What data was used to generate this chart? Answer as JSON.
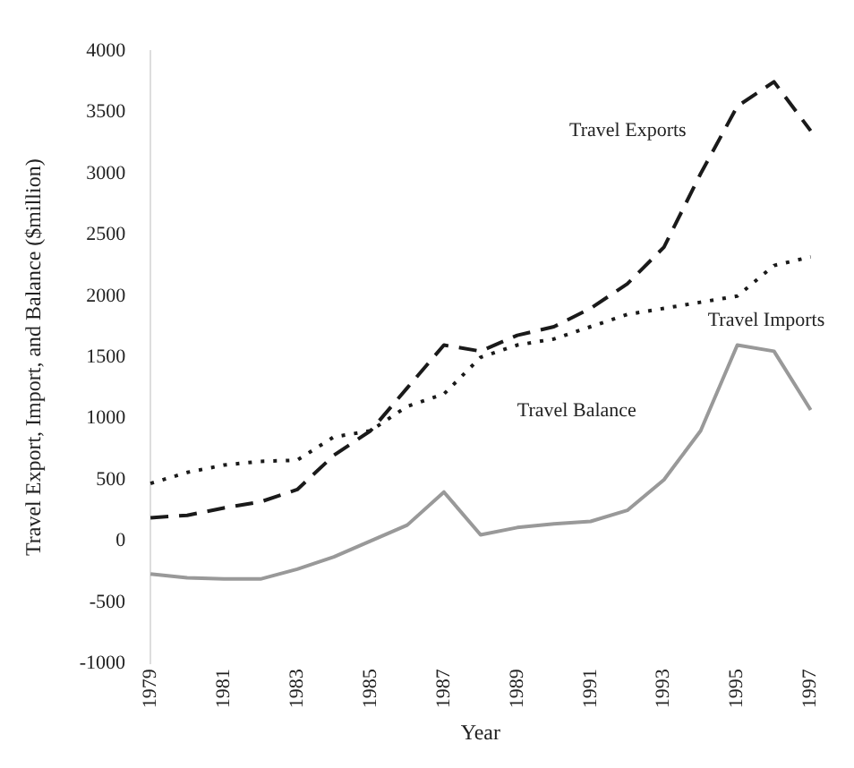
{
  "chart_data": {
    "type": "line",
    "xlabel": "Year",
    "ylabel": "Travel Export, Import, and Balance ($million)",
    "categories": [
      "1979",
      null,
      "1981",
      null,
      "1983",
      null,
      "1985",
      null,
      "1987",
      null,
      "1989",
      null,
      "1991",
      null,
      "1993",
      null,
      "1995",
      null,
      "1997"
    ],
    "series": [
      {
        "name": "Travel Exports",
        "color": "#1a1a1a",
        "line_style": "dashed",
        "values": [
          190,
          210,
          270,
          320,
          420,
          700,
          900,
          1250,
          1600,
          1550,
          1680,
          1750,
          1900,
          2100,
          2400,
          3000,
          3550,
          3750,
          3350
        ]
      },
      {
        "name": "Travel Imports",
        "color": "#1a1a1a",
        "line_style": "dotted",
        "values": [
          470,
          560,
          620,
          650,
          660,
          850,
          900,
          1100,
          1200,
          1500,
          1600,
          1650,
          1750,
          1850,
          1900,
          1950,
          2000,
          2250,
          2320
        ]
      },
      {
        "name": "Travel Balance",
        "color": "#999999",
        "line_style": "solid",
        "values": [
          -270,
          -300,
          -310,
          -310,
          -230,
          -130,
          0,
          130,
          400,
          50,
          110,
          140,
          160,
          250,
          500,
          900,
          1600,
          1550,
          1070
        ]
      }
    ],
    "ylim": [
      -1000,
      4000
    ],
    "yticks": [
      -1000,
      -500,
      0,
      500,
      1000,
      1500,
      2000,
      2500,
      3000,
      3500,
      4000
    ],
    "grid": false,
    "legend": false,
    "marker": "none"
  }
}
